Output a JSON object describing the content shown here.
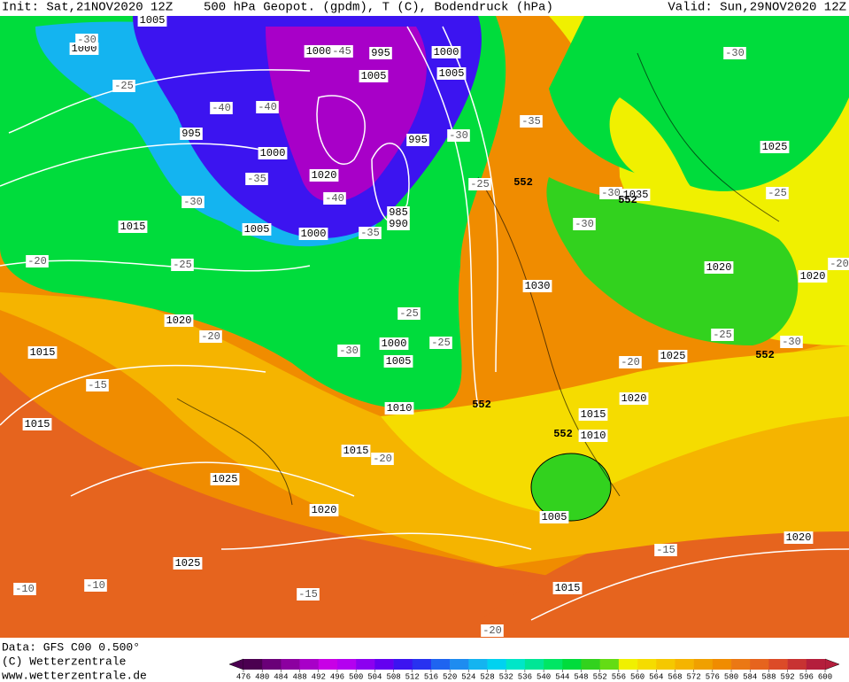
{
  "header": {
    "init": "Init: Sat,21NOV2020 12Z",
    "title": "500 hPa Geopot. (gpdm), T (C), Bodendruck (hPa)",
    "valid": "Valid: Sun,29NOV2020 12Z"
  },
  "footer": {
    "data": "Data: GFS C00 0.500°",
    "copyright": "(C) Wetterzentrale",
    "url": "www.wetterzentrale.de"
  },
  "map_labels": {
    "isobars": [
      "1005",
      "1000",
      "1000",
      "995",
      "1000",
      "1005",
      "1005",
      "995",
      "995",
      "1000",
      "1020",
      "985",
      "990",
      "1005",
      "1000",
      "1015",
      "1030",
      "1035",
      "1025",
      "1020",
      "1020",
      "1025",
      "1020",
      "1015",
      "1000",
      "1005",
      "1010",
      "1015",
      "1020",
      "1010",
      "1015",
      "1015",
      "1025",
      "1020",
      "1005",
      "1025",
      "1015",
      "1020"
    ],
    "temperatures": [
      "-30",
      "-25",
      "-40",
      "-40",
      "-45",
      "-35",
      "-30",
      "-40",
      "-35",
      "-30",
      "-35",
      "-25",
      "-30",
      "-30",
      "-30",
      "-25",
      "-20",
      "-25",
      "-20",
      "-25",
      "-25",
      "-30",
      "-15",
      "-20",
      "-20",
      "-25",
      "-30",
      "-20",
      "-15",
      "-10",
      "-10",
      "-15",
      "-20"
    ],
    "contours": [
      "552",
      "552",
      "552",
      "552",
      "552"
    ]
  },
  "colorbar": {
    "values": [
      476,
      480,
      484,
      488,
      492,
      496,
      500,
      504,
      508,
      512,
      516,
      520,
      524,
      528,
      532,
      536,
      540,
      544,
      548,
      552,
      556,
      560,
      564,
      568,
      572,
      576,
      580,
      584,
      588,
      592,
      596,
      600
    ],
    "colors": [
      "#4b0050",
      "#6a0078",
      "#8c00a0",
      "#a800c8",
      "#c800e6",
      "#b400f0",
      "#8c00f0",
      "#6400f0",
      "#3c14f0",
      "#2832f0",
      "#1e64f0",
      "#1e8cf0",
      "#14b4f0",
      "#00d2f0",
      "#00e6c8",
      "#00e696",
      "#00e664",
      "#00dc3c",
      "#32d21e",
      "#64dc14",
      "#f0f000",
      "#f5dc00",
      "#f5c800",
      "#f5b400",
      "#f0a000",
      "#f08c00",
      "#eb7814",
      "#e6641e",
      "#dc4b28",
      "#c83232",
      "#b41e3c"
    ]
  }
}
